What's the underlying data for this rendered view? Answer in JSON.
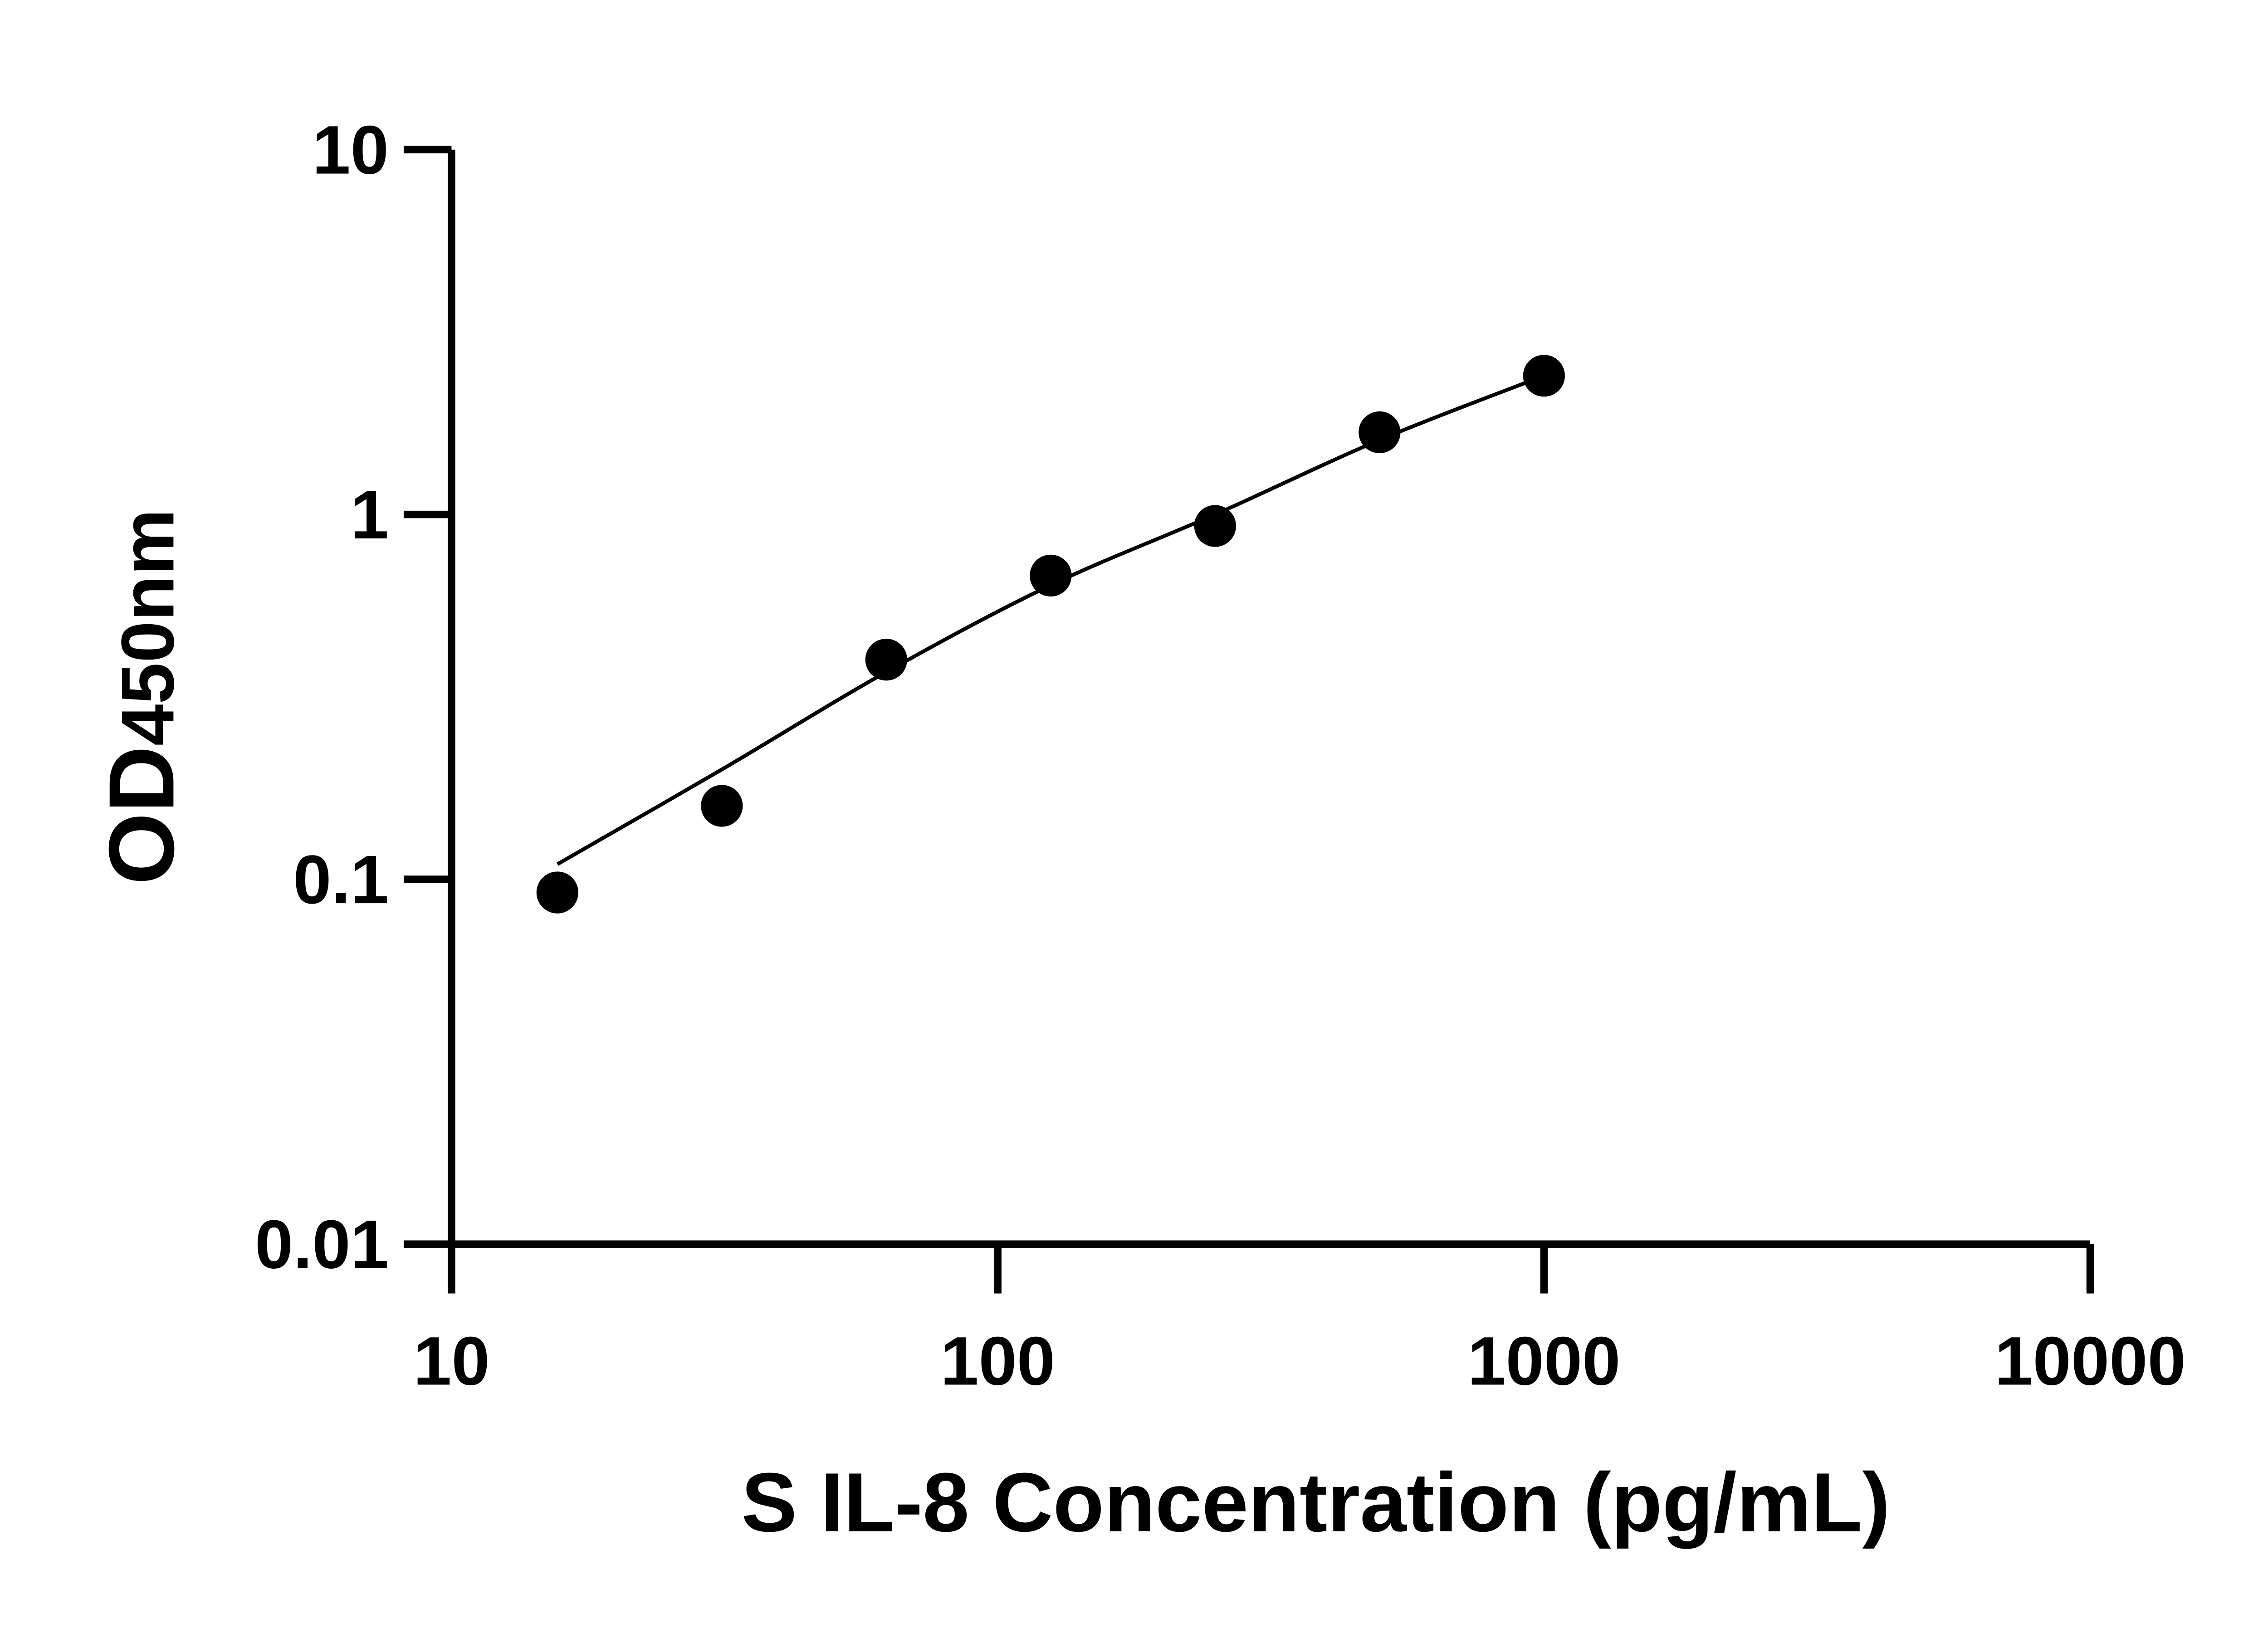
{
  "chart_data": {
    "type": "scatter",
    "xlabel": "S IL-8 Concentration (pg/mL)",
    "ylabel_main": "OD",
    "ylabel_sub": "450nm",
    "xscale": "log",
    "yscale": "log",
    "xlim": [
      10,
      10000
    ],
    "ylim": [
      0.01,
      10
    ],
    "x_ticks": [
      "10",
      "100",
      "1000",
      "10000"
    ],
    "y_ticks": [
      "10",
      "1",
      "0.1",
      "0.01"
    ],
    "grid": false,
    "legend": "none",
    "marker_color": "#000000",
    "points": {
      "x": [
        15.625,
        31.25,
        62.5,
        125,
        250,
        500,
        1000
      ],
      "y": [
        0.092,
        0.159,
        0.4,
        0.68,
        0.93,
        1.68,
        2.4
      ]
    },
    "fit_curve": {
      "x": [
        15.625,
        31.25,
        62.5,
        125,
        250,
        500,
        1000
      ],
      "y": [
        0.11,
        0.2,
        0.37,
        0.64,
        1.0,
        1.6,
        2.4
      ]
    }
  }
}
